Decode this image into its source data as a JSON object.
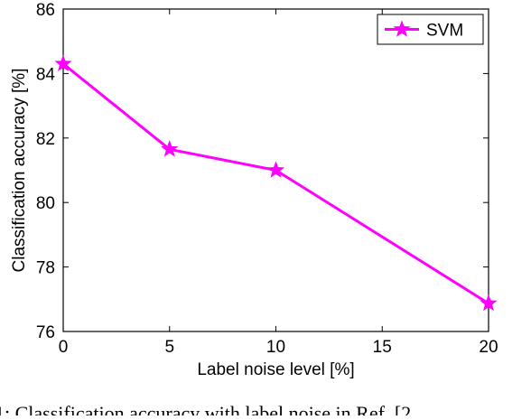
{
  "chart_data": {
    "type": "line",
    "x": [
      0,
      5,
      10,
      15,
      20
    ],
    "series": [
      {
        "name": "SVM",
        "x": [
          0,
          5,
          10,
          20
        ],
        "values": [
          84.3,
          81.65,
          81.0,
          76.87
        ],
        "color": "#ff00ff",
        "marker": "star"
      }
    ],
    "xlabel": "Label noise level [%]",
    "ylabel": "Classification accuracy [%]",
    "xlim": [
      0,
      20
    ],
    "ylim": [
      76,
      86
    ],
    "xticks": [
      "0",
      "5",
      "10",
      "15",
      "20"
    ],
    "yticks": [
      "76",
      "78",
      "80",
      "82",
      "84",
      "86"
    ],
    "grid": false,
    "legend": "top-right"
  },
  "caption": "1: Classification accuracy with label noise in Ref. [2"
}
